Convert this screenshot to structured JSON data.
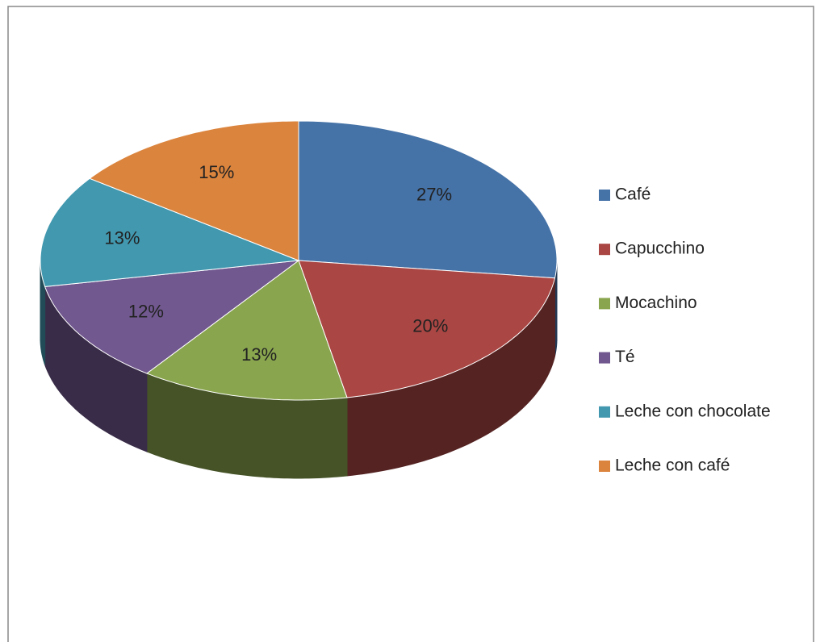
{
  "chart_data": {
    "type": "pie",
    "categories": [
      "Café",
      "Capucchino",
      "Mocachino",
      "Té",
      "Leche con chocolate",
      "Leche con café"
    ],
    "values": [
      27,
      20,
      13,
      12,
      13,
      15
    ],
    "value_labels": [
      "27%",
      "20%",
      "13%",
      "12%",
      "13%",
      "15%"
    ],
    "colors": [
      "#4572a7",
      "#aa4643",
      "#89a54e",
      "#71588f",
      "#4198af",
      "#db843d"
    ],
    "legend": "right"
  }
}
